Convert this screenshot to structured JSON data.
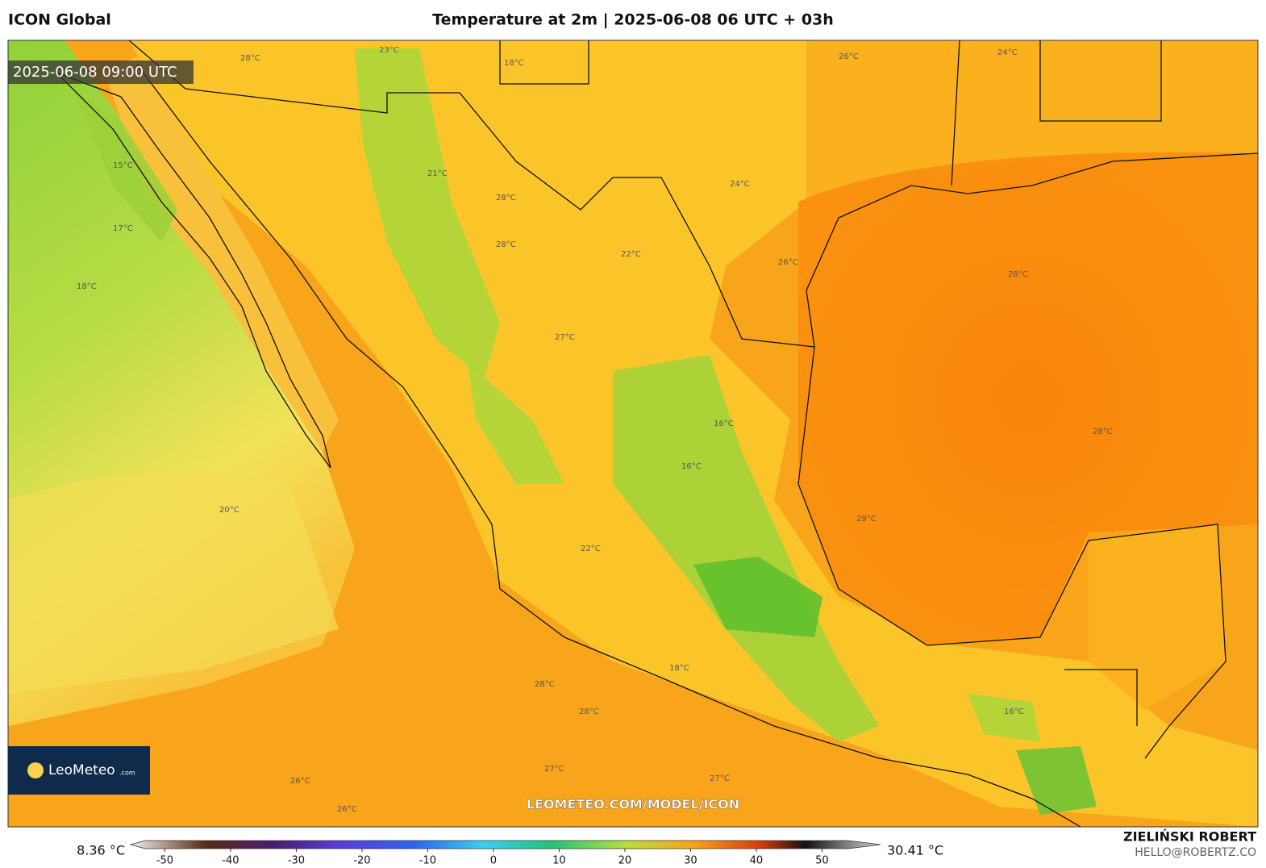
{
  "header": {
    "model": "ICON Global",
    "title": "Temperature at 2m | 2025-06-08 06 UTC + 03h"
  },
  "map": {
    "valid_time": "2025-06-08 09:00 UTC",
    "watermark": "LEOMETEO.COM/MODEL/ICON",
    "logo": {
      "name": "LeoMeteo",
      "suffix": ".com"
    },
    "contour_labels": [
      "23°C",
      "28°C",
      "18°C",
      "26°C",
      "24°C",
      "15°C",
      "17°C",
      "18°C",
      "21°C",
      "28°C",
      "28°C",
      "22°C",
      "27°C",
      "26°C",
      "28°C",
      "29°C",
      "20°C",
      "16°C",
      "22°C",
      "16°C",
      "18°C",
      "28°C",
      "28°C",
      "27°C",
      "27°C",
      "26°C",
      "26°C",
      "16°C",
      "28°C",
      "24°C"
    ]
  },
  "colorbar": {
    "min_label": "8.36 °C",
    "max_label": "30.41 °C",
    "lim": [
      -53,
      54
    ],
    "ticks": [
      -50,
      -40,
      -30,
      -20,
      -10,
      0,
      10,
      20,
      30,
      40,
      50
    ]
  },
  "footer": {
    "author": "ZIELIŃSKI ROBERT",
    "email": "HELLO@ROBERTZ.CO"
  }
}
